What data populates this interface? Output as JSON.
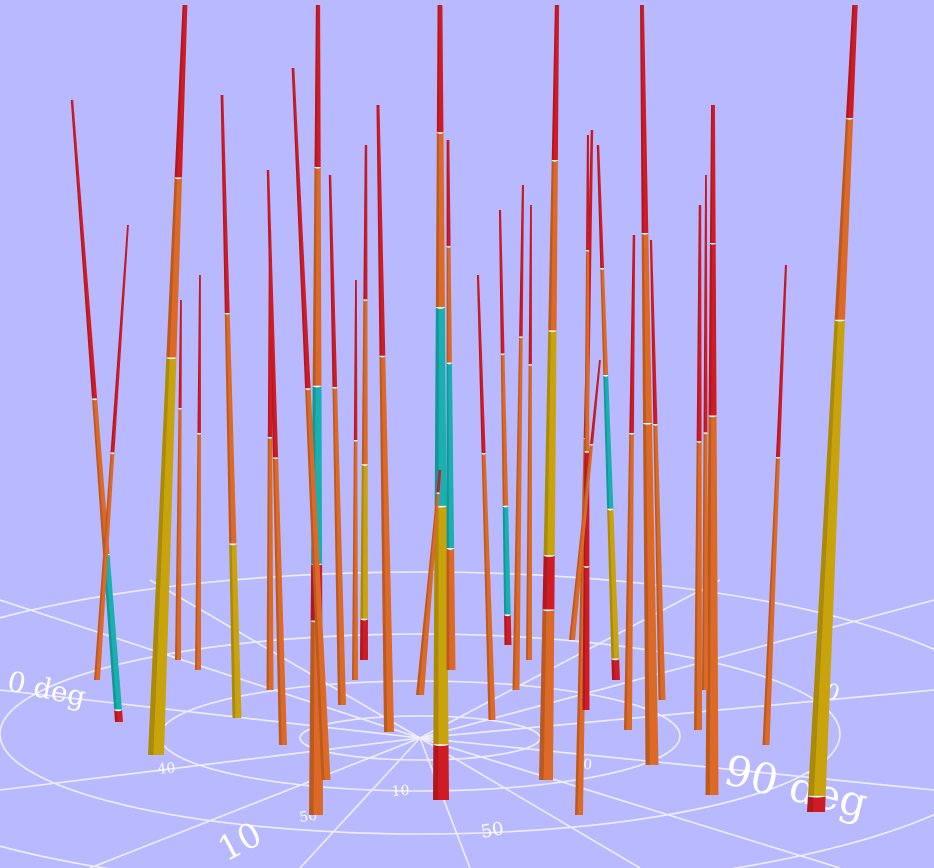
{
  "scene": {
    "background_color": "#b9b9ff",
    "floor_grid_color": "#ffffff",
    "segment_colors": {
      "red": "#cf1c24",
      "orange": "#dc6a26",
      "gold": "#c9a30c",
      "cyan": "#1ab0b0"
    }
  },
  "floor_labels": {
    "ninety_deg": "90 deg",
    "zero_deg": "0 deg",
    "ten": "10",
    "fifty": "50",
    "seventy": "70",
    "small_left": "40",
    "small_mid_left": "50",
    "small_mid": "10",
    "small_right": "10"
  }
}
